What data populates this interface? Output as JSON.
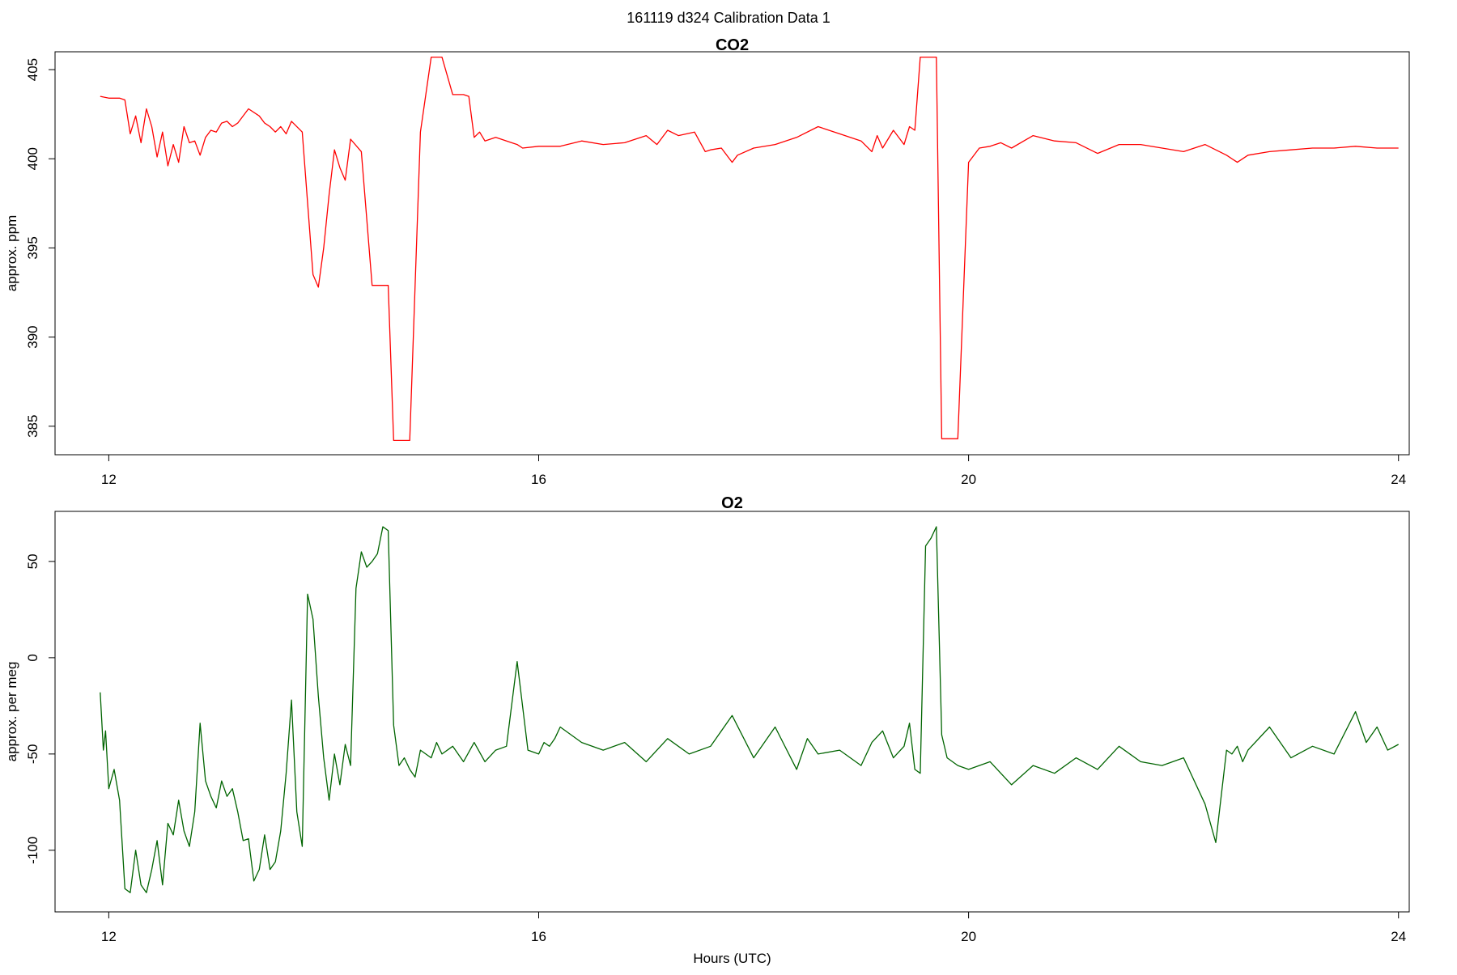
{
  "figure_title": "161119   d324   Calibration Data 1",
  "xlabel": "Hours (UTC)",
  "chart_data": [
    {
      "type": "line",
      "title": "CO2",
      "xlabel": "",
      "ylabel": "approx. ppm",
      "xlim": [
        11.5,
        24.1
      ],
      "ylim": [
        383.4,
        406.0
      ],
      "x_ticks": [
        12,
        16,
        20,
        24
      ],
      "y_ticks": [
        385,
        390,
        395,
        400,
        405
      ],
      "grid": false,
      "series": [
        {
          "color": "#ff0000",
          "x": [
            11.92,
            12.0,
            12.1,
            12.15,
            12.2,
            12.25,
            12.3,
            12.35,
            12.4,
            12.45,
            12.5,
            12.55,
            12.6,
            12.65,
            12.7,
            12.75,
            12.8,
            12.85,
            12.9,
            12.95,
            13.0,
            13.05,
            13.1,
            13.15,
            13.2,
            13.3,
            13.4,
            13.45,
            13.5,
            13.55,
            13.6,
            13.65,
            13.7,
            13.8,
            13.9,
            13.95,
            14.0,
            14.05,
            14.1,
            14.15,
            14.2,
            14.25,
            14.35,
            14.45,
            14.5,
            14.55,
            14.6,
            14.65,
            14.7,
            14.75,
            14.8,
            14.9,
            15.0,
            15.05,
            15.1,
            15.2,
            15.25,
            15.3,
            15.35,
            15.4,
            15.45,
            15.5,
            15.6,
            15.8,
            15.85,
            16.0,
            16.2,
            16.4,
            16.6,
            16.8,
            17.0,
            17.1,
            17.2,
            17.3,
            17.45,
            17.55,
            17.6,
            17.7,
            17.8,
            17.85,
            18.0,
            18.2,
            18.4,
            18.6,
            18.8,
            19.0,
            19.1,
            19.15,
            19.2,
            19.3,
            19.4,
            19.45,
            19.5,
            19.55,
            19.6,
            19.65,
            19.7,
            19.75,
            19.8,
            19.85,
            19.9,
            20.0,
            20.1,
            20.2,
            20.3,
            20.4,
            20.6,
            20.8,
            21.0,
            21.2,
            21.4,
            21.6,
            21.8,
            22.0,
            22.2,
            22.4,
            22.5,
            22.6,
            22.8,
            23.0,
            23.2,
            23.4,
            23.6,
            23.8,
            24.0
          ],
          "values": [
            403.5,
            403.4,
            403.4,
            403.3,
            401.4,
            402.4,
            400.9,
            402.8,
            401.8,
            400.1,
            401.5,
            399.6,
            400.8,
            399.8,
            401.8,
            400.9,
            401.0,
            400.2,
            401.2,
            401.6,
            401.5,
            402.0,
            402.1,
            401.8,
            402.0,
            402.8,
            402.4,
            402.0,
            401.8,
            401.5,
            401.8,
            401.4,
            402.1,
            401.5,
            393.5,
            392.8,
            395.0,
            398.0,
            400.5,
            399.5,
            398.8,
            401.1,
            400.4,
            392.9,
            392.9,
            392.9,
            392.9,
            384.2,
            384.2,
            384.2,
            384.2,
            401.5,
            405.7,
            405.7,
            405.7,
            403.6,
            403.6,
            403.6,
            403.5,
            401.2,
            401.5,
            401.0,
            401.2,
            400.8,
            400.6,
            400.7,
            400.7,
            401.0,
            400.8,
            400.9,
            401.3,
            400.8,
            401.6,
            401.3,
            401.5,
            400.4,
            400.5,
            400.6,
            399.8,
            400.2,
            400.6,
            400.8,
            401.2,
            401.8,
            401.4,
            401.0,
            400.4,
            401.3,
            400.6,
            401.6,
            400.8,
            401.8,
            401.6,
            405.7,
            405.7,
            405.7,
            405.7,
            384.3,
            384.3,
            384.3,
            384.3,
            399.8,
            400.6,
            400.7,
            400.9,
            400.6,
            401.3,
            401.0,
            400.9,
            400.3,
            400.8,
            400.8,
            400.6,
            400.4,
            400.8,
            400.2,
            399.8,
            400.2,
            400.4,
            400.5,
            400.6,
            400.6,
            400.7,
            400.6,
            400.6
          ]
        }
      ]
    },
    {
      "type": "line",
      "title": "O2",
      "xlabel": "Hours (UTC)",
      "ylabel": "approx. per meg",
      "xlim": [
        11.5,
        24.1
      ],
      "ylim": [
        -132,
        76
      ],
      "x_ticks": [
        12,
        16,
        20,
        24
      ],
      "y_ticks": [
        -100,
        -50,
        0,
        50
      ],
      "grid": false,
      "series": [
        {
          "color": "#006400",
          "x": [
            11.92,
            11.95,
            11.97,
            12.0,
            12.05,
            12.1,
            12.15,
            12.2,
            12.25,
            12.3,
            12.35,
            12.4,
            12.45,
            12.5,
            12.55,
            12.6,
            12.65,
            12.7,
            12.75,
            12.8,
            12.85,
            12.9,
            12.95,
            13.0,
            13.05,
            13.1,
            13.15,
            13.2,
            13.25,
            13.3,
            13.35,
            13.4,
            13.45,
            13.5,
            13.55,
            13.6,
            13.65,
            13.7,
            13.75,
            13.8,
            13.85,
            13.9,
            13.95,
            14.0,
            14.05,
            14.1,
            14.15,
            14.2,
            14.25,
            14.3,
            14.35,
            14.4,
            14.45,
            14.5,
            14.55,
            14.6,
            14.65,
            14.7,
            14.75,
            14.8,
            14.85,
            14.9,
            15.0,
            15.05,
            15.1,
            15.2,
            15.3,
            15.4,
            15.5,
            15.6,
            15.7,
            15.8,
            15.9,
            16.0,
            16.05,
            16.1,
            16.15,
            16.2,
            16.4,
            16.6,
            16.8,
            17.0,
            17.2,
            17.4,
            17.6,
            17.8,
            18.0,
            18.2,
            18.4,
            18.5,
            18.6,
            18.8,
            19.0,
            19.1,
            19.2,
            19.3,
            19.4,
            19.45,
            19.5,
            19.55,
            19.6,
            19.65,
            19.7,
            19.75,
            19.8,
            19.9,
            20.0,
            20.2,
            20.4,
            20.6,
            20.8,
            21.0,
            21.2,
            21.4,
            21.6,
            21.8,
            22.0,
            22.2,
            22.3,
            22.4,
            22.45,
            22.5,
            22.55,
            22.6,
            22.8,
            23.0,
            23.2,
            23.4,
            23.6,
            23.7,
            23.8,
            23.9,
            24.0
          ],
          "values": [
            -18,
            -48,
            -38,
            -68,
            -58,
            -74,
            -120,
            -122,
            -100,
            -118,
            -122,
            -110,
            -95,
            -118,
            -86,
            -92,
            -74,
            -90,
            -98,
            -80,
            -34,
            -64,
            -72,
            -78,
            -64,
            -72,
            -68,
            -80,
            -95,
            -94,
            -116,
            -110,
            -92,
            -110,
            -106,
            -90,
            -60,
            -22,
            -80,
            -98,
            33,
            20,
            -20,
            -52,
            -74,
            -50,
            -66,
            -45,
            -56,
            36,
            55,
            47,
            50,
            54,
            68,
            66,
            -35,
            -56,
            -52,
            -58,
            -62,
            -48,
            -52,
            -44,
            -50,
            -46,
            -54,
            -44,
            -54,
            -48,
            -46,
            -2,
            -48,
            -50,
            -44,
            -46,
            -42,
            -36,
            -44,
            -48,
            -44,
            -54,
            -42,
            -50,
            -46,
            -30,
            -52,
            -36,
            -58,
            -42,
            -50,
            -48,
            -56,
            -44,
            -38,
            -52,
            -46,
            -34,
            -58,
            -60,
            58,
            62,
            68,
            -40,
            -52,
            -56,
            -58,
            -54,
            -66,
            -56,
            -60,
            -52,
            -58,
            -46,
            -54,
            -56,
            -52,
            -76,
            -96,
            -48,
            -50,
            -46,
            -54,
            -48,
            -36,
            -52,
            -46,
            -50,
            -28,
            -44,
            -36,
            -48,
            -45
          ]
        }
      ]
    }
  ]
}
